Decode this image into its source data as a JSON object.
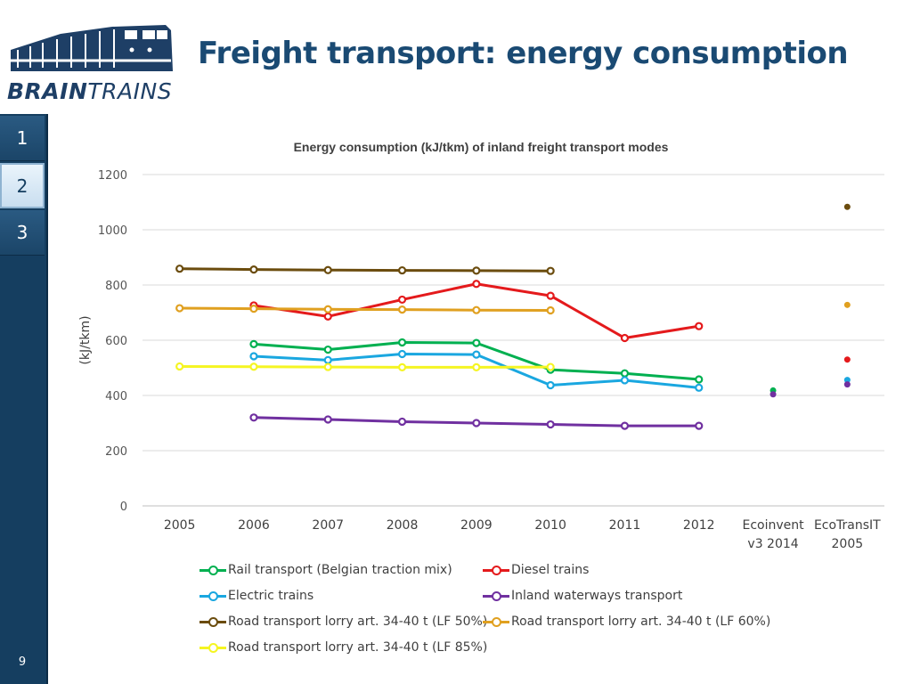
{
  "header": {
    "title": "Freight transport: energy consumption",
    "logo_text_bold": "BRAIN",
    "logo_text_rest": "TRAINS"
  },
  "nav": {
    "tabs": [
      {
        "label": "1",
        "active": false
      },
      {
        "label": "2",
        "active": true
      },
      {
        "label": "3",
        "active": false
      }
    ],
    "page_number": "9"
  },
  "colors": {
    "nav_bg": "#153e60",
    "title": "#1a4a73"
  },
  "chart_data": {
    "type": "line",
    "title": "Energy consumption (kJ/tkm) of inland freight transport modes",
    "xlabel": "",
    "ylabel": "(kJ/tkm)",
    "ylim": [
      0,
      1200
    ],
    "yticks": [
      0,
      200,
      400,
      600,
      800,
      1000,
      1200
    ],
    "categories": [
      "2005",
      "2006",
      "2007",
      "2008",
      "2009",
      "2010",
      "2011",
      "2012",
      "Ecoinvent v3 2014",
      "EcoTransIT 2005"
    ],
    "category_lines": [
      [
        "2005"
      ],
      [
        "2006"
      ],
      [
        "2007"
      ],
      [
        "2008"
      ],
      [
        "2009"
      ],
      [
        "2010"
      ],
      [
        "2011"
      ],
      [
        "2012"
      ],
      [
        "Ecoinvent",
        "v3 2014"
      ],
      [
        "EcoTransIT",
        "2005"
      ]
    ],
    "grid": true,
    "legend_position": "bottom",
    "series": [
      {
        "name": "Rail transport (Belgian traction mix)",
        "color": "#00b050",
        "values": [
          null,
          586,
          566,
          592,
          590,
          493,
          480,
          458,
          418,
          null
        ]
      },
      {
        "name": "Diesel trains",
        "color": "#e41a1c",
        "values": [
          null,
          726,
          686,
          747,
          804,
          761,
          608,
          651,
          null,
          530
        ]
      },
      {
        "name": "Electric trains",
        "color": "#1aa7e0",
        "values": [
          null,
          542,
          528,
          550,
          548,
          437,
          455,
          428,
          null,
          456
        ]
      },
      {
        "name": "Inland waterways transport",
        "color": "#7030a0",
        "values": [
          null,
          320,
          313,
          305,
          300,
          295,
          290,
          290,
          404,
          440
        ]
      },
      {
        "name": "Road transport lorry art. 34-40 t (LF 50%)",
        "color": "#6b4c0e",
        "values": [
          859,
          856,
          854,
          853,
          852,
          851,
          null,
          null,
          null,
          1083
        ]
      },
      {
        "name": "Road transport lorry art. 34-40 t (LF 60%)",
        "color": "#e0a020",
        "values": [
          716,
          714,
          712,
          711,
          709,
          708,
          null,
          null,
          null,
          728
        ]
      },
      {
        "name": "Road transport lorry art. 34-40 t (LF 85%)",
        "color": "#f5f522",
        "values": [
          505,
          504,
          503,
          502,
          502,
          503,
          null,
          null,
          null,
          null
        ]
      }
    ]
  }
}
